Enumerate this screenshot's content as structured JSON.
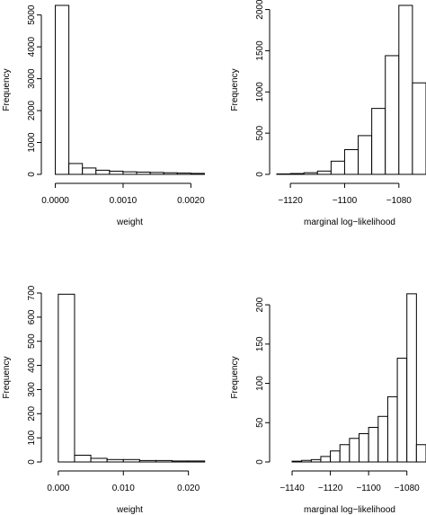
{
  "chart_data": [
    {
      "type": "bar",
      "panel": "top-left",
      "xlabel": "weight",
      "ylabel": "Frequency",
      "xlim": [
        -0.0001,
        0.0023
      ],
      "ylim": [
        0,
        5300
      ],
      "xticks": [
        0,
        0.001,
        0.002
      ],
      "xtick_labels": [
        "0.0000",
        "0.0010",
        "0.0020"
      ],
      "yticks": [
        0,
        1000,
        2000,
        3000,
        4000,
        5000
      ],
      "ytick_labels": [
        "0",
        "1000",
        "2000",
        "3000",
        "4000",
        "5000"
      ],
      "bin_width": 0.0002,
      "bins_start": [
        0,
        0.0002,
        0.0004,
        0.0006,
        0.0008,
        0.001,
        0.0012,
        0.0014,
        0.0016,
        0.0018,
        0.002
      ],
      "values": [
        5300,
        340,
        200,
        130,
        100,
        80,
        70,
        60,
        50,
        40,
        30
      ],
      "grid": false
    },
    {
      "type": "bar",
      "panel": "top-right",
      "xlabel": "marginal log−likelihood",
      "ylabel": "Frequency",
      "xlim": [
        -1125,
        -1070
      ],
      "ylim": [
        0,
        2050
      ],
      "xticks": [
        -1120,
        -1100,
        -1080
      ],
      "xtick_labels": [
        "−1120",
        "−1100",
        "−1080"
      ],
      "yticks": [
        0,
        500,
        1000,
        1500,
        2000
      ],
      "ytick_labels": [
        "0",
        "500",
        "1000",
        "1500",
        "2000"
      ],
      "bin_width": 5,
      "bins_start": [
        -1125,
        -1120,
        -1115,
        -1110,
        -1105,
        -1100,
        -1095,
        -1090,
        -1085,
        -1080,
        -1075
      ],
      "values": [
        5,
        10,
        20,
        40,
        160,
        300,
        470,
        800,
        1440,
        2050,
        1110
      ],
      "grid": false
    },
    {
      "type": "bar",
      "panel": "bottom-left",
      "xlabel": "weight",
      "ylabel": "Frequency",
      "xlim": [
        -0.0015,
        0.0235
      ],
      "ylim": [
        0,
        700
      ],
      "xticks": [
        0,
        0.01,
        0.02
      ],
      "xtick_labels": [
        "0.000",
        "0.010",
        "0.020"
      ],
      "yticks": [
        0,
        100,
        200,
        300,
        400,
        500,
        600,
        700
      ],
      "ytick_labels": [
        "0",
        "100",
        "200",
        "300",
        "400",
        "500",
        "600",
        "700"
      ],
      "bin_width": 0.0025,
      "bins_start": [
        0,
        0.0025,
        0.005,
        0.0075,
        0.01,
        0.0125,
        0.015,
        0.0175,
        0.02
      ],
      "values": [
        695,
        28,
        15,
        10,
        10,
        6,
        6,
        4,
        4
      ],
      "grid": false
    },
    {
      "type": "bar",
      "panel": "bottom-right",
      "xlabel": "marginal log−likelihood",
      "ylabel": "Frequency",
      "xlim": [
        -1148,
        -1070
      ],
      "ylim": [
        0,
        215
      ],
      "xticks": [
        -1140,
        -1120,
        -1100,
        -1080
      ],
      "xtick_labels": [
        "−1140",
        "−1120",
        "−1100",
        "−1080"
      ],
      "yticks": [
        0,
        50,
        100,
        150,
        200
      ],
      "ytick_labels": [
        "0",
        "50",
        "100",
        "150",
        "200"
      ],
      "bin_width": 5,
      "bins_start": [
        -1145,
        -1140,
        -1135,
        -1130,
        -1125,
        -1120,
        -1115,
        -1110,
        -1105,
        -1100,
        -1095,
        -1090,
        -1085,
        -1080,
        -1075
      ],
      "values": [
        0,
        1,
        2,
        3,
        7,
        14,
        22,
        30,
        36,
        44,
        58,
        83,
        132,
        214,
        22
      ],
      "grid": false
    }
  ]
}
